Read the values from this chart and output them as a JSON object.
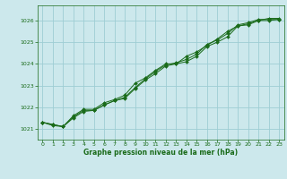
{
  "title": "Graphe pression niveau de la mer (hPa)",
  "background_color": "#cce8ec",
  "grid_color": "#9ecdd4",
  "line_color": "#1a6b1a",
  "text_color": "#1a6b1a",
  "xlim": [
    -0.5,
    23.5
  ],
  "ylim": [
    1020.5,
    1026.7
  ],
  "yticks": [
    1021,
    1022,
    1023,
    1024,
    1025,
    1026
  ],
  "xticks": [
    0,
    1,
    2,
    3,
    4,
    5,
    6,
    7,
    8,
    9,
    10,
    11,
    12,
    13,
    14,
    15,
    16,
    17,
    18,
    19,
    20,
    21,
    22,
    23
  ],
  "series": [
    [
      1021.3,
      1021.2,
      1021.1,
      1021.5,
      1021.8,
      1021.85,
      1022.1,
      1022.3,
      1022.4,
      1022.85,
      1023.25,
      1023.55,
      1023.9,
      1024.0,
      1024.1,
      1024.35,
      1024.8,
      1025.0,
      1025.25,
      1025.75,
      1025.8,
      1026.0,
      1026.0,
      1026.05
    ],
    [
      1021.3,
      1021.2,
      1021.1,
      1021.6,
      1021.9,
      1021.9,
      1022.2,
      1022.35,
      1022.55,
      1023.1,
      1023.35,
      1023.7,
      1024.0,
      1024.0,
      1024.35,
      1024.55,
      1024.85,
      1025.15,
      1025.5,
      1025.75,
      1025.85,
      1026.0,
      1026.1,
      1026.1
    ],
    [
      1021.3,
      1021.15,
      1021.1,
      1021.55,
      1021.85,
      1021.85,
      1022.1,
      1022.3,
      1022.45,
      1022.9,
      1023.3,
      1023.65,
      1023.95,
      1024.05,
      1024.2,
      1024.45,
      1024.9,
      1025.1,
      1025.4,
      1025.8,
      1025.9,
      1026.05,
      1026.05,
      1026.05
    ]
  ],
  "figsize": [
    3.2,
    2.0
  ],
  "dpi": 100
}
